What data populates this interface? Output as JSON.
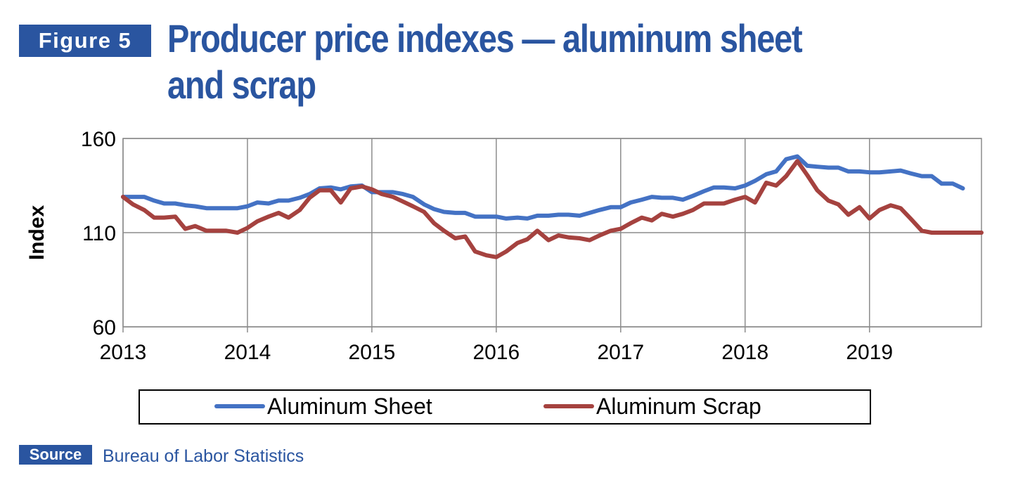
{
  "figure": {
    "label": "Figure 5",
    "title": "Producer price indexes — aluminum sheet and scrap"
  },
  "source": {
    "label": "Source",
    "text": "Bureau of Labor Statistics"
  },
  "colors": {
    "brand": "#2a55a0",
    "sheet": "#4472c4",
    "scrap": "#a5423f",
    "grid": "#8c8c8c"
  },
  "chart_data": {
    "type": "line",
    "ylabel": "Index",
    "xlabel": "",
    "ylim": [
      60,
      160
    ],
    "yticks": [
      60,
      110,
      160
    ],
    "xlim": [
      2013,
      2019.9
    ],
    "xticks": [
      2013,
      2014,
      2015,
      2016,
      2017,
      2018,
      2019
    ],
    "grid": true,
    "legend": "bottom",
    "series": [
      {
        "name": "Aluminum Sheet",
        "color": "#4472c4",
        "x": [
          2013.0,
          2013.08,
          2013.17,
          2013.25,
          2013.33,
          2013.42,
          2013.5,
          2013.58,
          2013.67,
          2013.75,
          2013.83,
          2013.92,
          2014.0,
          2014.08,
          2014.17,
          2014.25,
          2014.33,
          2014.42,
          2014.5,
          2014.58,
          2014.67,
          2014.75,
          2014.83,
          2014.92,
          2015.0,
          2015.08,
          2015.17,
          2015.25,
          2015.33,
          2015.42,
          2015.5,
          2015.58,
          2015.67,
          2015.75,
          2015.83,
          2015.92,
          2016.0,
          2016.08,
          2016.17,
          2016.25,
          2016.33,
          2016.42,
          2016.5,
          2016.58,
          2016.67,
          2016.75,
          2016.83,
          2016.92,
          2017.0,
          2017.08,
          2017.17,
          2017.25,
          2017.33,
          2017.42,
          2017.5,
          2017.58,
          2017.67,
          2017.75,
          2017.83,
          2017.92,
          2018.0,
          2018.08,
          2018.17,
          2018.25,
          2018.33,
          2018.42,
          2018.5,
          2018.58,
          2018.67,
          2018.75,
          2018.83,
          2018.92,
          2019.0,
          2019.08,
          2019.17,
          2019.25,
          2019.33,
          2019.42,
          2019.5,
          2019.58,
          2019.67,
          2019.75
        ],
        "values": [
          129,
          129,
          129,
          127,
          125.5,
          125.5,
          124.5,
          124,
          123,
          123,
          123,
          123,
          124,
          126,
          125.5,
          127,
          127,
          128.5,
          130.5,
          133.5,
          134,
          133,
          134.5,
          135,
          131.5,
          131.5,
          131.5,
          130.5,
          129,
          125,
          122.5,
          121,
          120.5,
          120.5,
          118.5,
          118.5,
          118.5,
          117.5,
          118,
          117.5,
          119,
          119,
          119.5,
          119.5,
          119,
          120.5,
          122,
          123.5,
          123.5,
          126,
          127.5,
          129,
          128.5,
          128.5,
          127.5,
          129.5,
          132,
          134,
          134,
          133.5,
          135,
          137.5,
          141,
          142.5,
          149,
          150.5,
          145.5,
          145,
          144.5,
          144.5,
          142.5,
          142.5,
          142,
          142,
          142.5,
          143,
          141.5,
          140,
          140,
          136,
          136,
          133.5
        ]
      },
      {
        "name": "Aluminum Scrap",
        "color": "#a5423f",
        "x": [
          2013.0,
          2013.08,
          2013.17,
          2013.25,
          2013.33,
          2013.42,
          2013.5,
          2013.58,
          2013.67,
          2013.75,
          2013.83,
          2013.92,
          2014.0,
          2014.08,
          2014.17,
          2014.25,
          2014.33,
          2014.42,
          2014.5,
          2014.58,
          2014.67,
          2014.75,
          2014.83,
          2014.92,
          2015.0,
          2015.08,
          2015.17,
          2015.25,
          2015.33,
          2015.42,
          2015.5,
          2015.58,
          2015.67,
          2015.75,
          2015.83,
          2015.92,
          2016.0,
          2016.08,
          2016.17,
          2016.25,
          2016.33,
          2016.42,
          2016.5,
          2016.58,
          2016.67,
          2016.75,
          2016.83,
          2016.92,
          2017.0,
          2017.08,
          2017.17,
          2017.25,
          2017.33,
          2017.42,
          2017.5,
          2017.58,
          2017.67,
          2017.75,
          2017.83,
          2017.92,
          2018.0,
          2018.08,
          2018.17,
          2018.25,
          2018.33,
          2018.42,
          2018.5,
          2018.58,
          2018.67,
          2018.75,
          2018.83,
          2018.92,
          2019.0,
          2019.08,
          2019.17,
          2019.25,
          2019.33,
          2019.42,
          2019.5,
          2019.58,
          2019.67,
          2019.75,
          2019.83,
          2019.9
        ],
        "values": [
          129,
          125,
          122,
          118,
          118,
          118.5,
          112,
          113.5,
          111,
          111,
          111,
          110,
          112.5,
          116,
          118.5,
          120.5,
          118,
          122,
          128.5,
          132.5,
          132.5,
          126,
          133.5,
          134.5,
          133,
          130.5,
          129,
          126.5,
          124,
          121,
          115,
          111,
          107,
          108,
          100,
          98,
          97,
          100,
          104.5,
          106.5,
          111,
          106,
          108.5,
          107.5,
          107,
          106,
          108.5,
          111,
          112,
          115,
          118,
          116.5,
          120,
          118.5,
          120,
          122,
          125.5,
          125.5,
          125.5,
          127.5,
          129,
          126,
          136.5,
          135,
          140,
          148,
          140.5,
          132.5,
          127,
          125,
          119.5,
          123.5,
          117.5,
          122,
          124.5,
          123,
          117.5,
          111,
          110,
          110,
          110,
          110,
          110,
          110
        ]
      }
    ]
  }
}
